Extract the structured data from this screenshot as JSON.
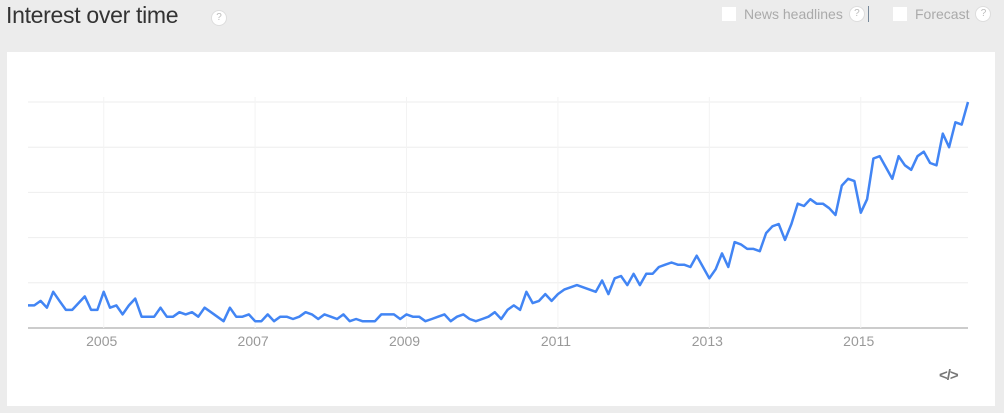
{
  "header": {
    "title": "Interest over time",
    "help": "?"
  },
  "options": [
    {
      "label": "News headlines",
      "checked": false
    },
    {
      "label": "Forecast",
      "checked": false
    }
  ],
  "embed_icon": "code-embed-icon",
  "embed_label": "</>",
  "chart_data": {
    "type": "line",
    "title": "Interest over time",
    "x_start": "2004-01",
    "x_end": "2016-06",
    "x_step": "month",
    "xtick_labels": [
      "2005",
      "2007",
      "2009",
      "2011",
      "2013",
      "2015"
    ],
    "ylim": [
      0,
      100
    ],
    "grid": true,
    "line_color": "#4285f4",
    "values": [
      10,
      10,
      12,
      9,
      16,
      12,
      8,
      8,
      11,
      14,
      8,
      8,
      16,
      9,
      10,
      6,
      10,
      13,
      5,
      5,
      5,
      9,
      5,
      5,
      7,
      6,
      7,
      5,
      9,
      7,
      5,
      3,
      9,
      5,
      5,
      6,
      3,
      3,
      6,
      3,
      5,
      5,
      4,
      5,
      7,
      6,
      4,
      6,
      5,
      4,
      6,
      3,
      4,
      3,
      3,
      3,
      6,
      6,
      6,
      4,
      6,
      5,
      5,
      3,
      4,
      5,
      6,
      3,
      5,
      6,
      4,
      3,
      4,
      5,
      7,
      4,
      8,
      10,
      8,
      16,
      11,
      12,
      15,
      12,
      15,
      17,
      18,
      19,
      18,
      17,
      16,
      21,
      15,
      22,
      23,
      19,
      24,
      19,
      24,
      24,
      27,
      28,
      29,
      28,
      28,
      27,
      32,
      27,
      22,
      26,
      33,
      27,
      38,
      37,
      35,
      35,
      34,
      42,
      45,
      46,
      39,
      46,
      55,
      54,
      57,
      55,
      55,
      53,
      50,
      63,
      66,
      65,
      51,
      57,
      75,
      76,
      71,
      66,
      76,
      72,
      70,
      76,
      78,
      73,
      72,
      86,
      80,
      91,
      90,
      100
    ]
  }
}
